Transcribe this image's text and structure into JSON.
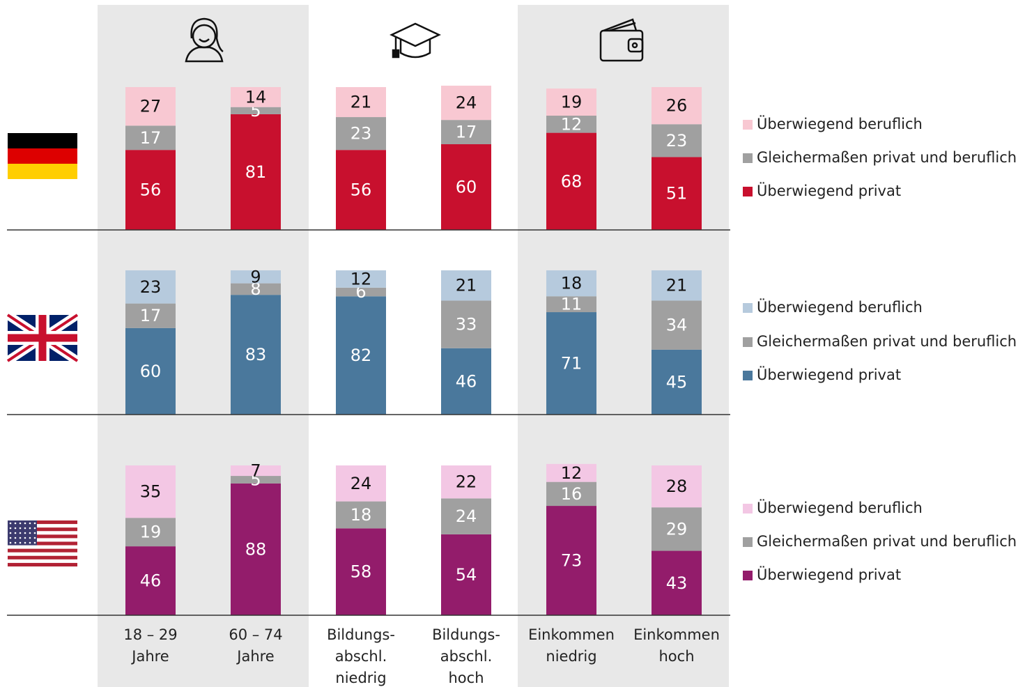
{
  "chart_data": [
    {
      "type": "bar",
      "stacked": true,
      "ylim": [
        0,
        100
      ],
      "series": [
        {
          "name": "Überwiegend privat",
          "color": "#c8102e",
          "values": [
            56,
            81,
            56,
            60,
            68,
            51
          ]
        },
        {
          "name": "Gleichermaßen privat und beruflich",
          "color": "#a0a0a0",
          "values": [
            17,
            5,
            23,
            17,
            12,
            23
          ]
        },
        {
          "name": "Überwiegend beruflich",
          "color": "#f8c8d2",
          "values": [
            27,
            14,
            21,
            24,
            19,
            26
          ]
        }
      ]
    },
    {
      "type": "bar",
      "stacked": true,
      "ylim": [
        0,
        100
      ],
      "series": [
        {
          "name": "Überwiegend privat",
          "color": "#4a789c",
          "values": [
            60,
            83,
            82,
            46,
            71,
            45
          ]
        },
        {
          "name": "Gleichermaßen privat und beruflich",
          "color": "#a0a0a0",
          "values": [
            17,
            8,
            6,
            33,
            11,
            34
          ]
        },
        {
          "name": "Überwiegend beruflich",
          "color": "#b6cadd",
          "values": [
            23,
            9,
            12,
            21,
            18,
            21
          ]
        }
      ]
    },
    {
      "type": "bar",
      "stacked": true,
      "ylim": [
        0,
        100
      ],
      "categories": [
        [
          "18 – 29",
          "Jahre"
        ],
        [
          "60 – 74",
          "Jahre"
        ],
        [
          "Bildungs-",
          "abschl.",
          "niedrig"
        ],
        [
          "Bildungs-",
          "abschl.",
          "hoch"
        ],
        [
          "Einkommen",
          "niedrig"
        ],
        [
          "Einkommen",
          "hoch"
        ]
      ],
      "series": [
        {
          "name": "Überwiegend privat",
          "color": "#931c6b",
          "values": [
            46,
            88,
            58,
            54,
            73,
            43
          ]
        },
        {
          "name": "Gleichermaßen privat und beruflich",
          "color": "#a0a0a0",
          "values": [
            19,
            5,
            18,
            24,
            16,
            29
          ]
        },
        {
          "name": "Überwiegend beruflich",
          "color": "#f3c7e4",
          "values": [
            35,
            7,
            24,
            22,
            12,
            28
          ]
        }
      ]
    }
  ]
}
